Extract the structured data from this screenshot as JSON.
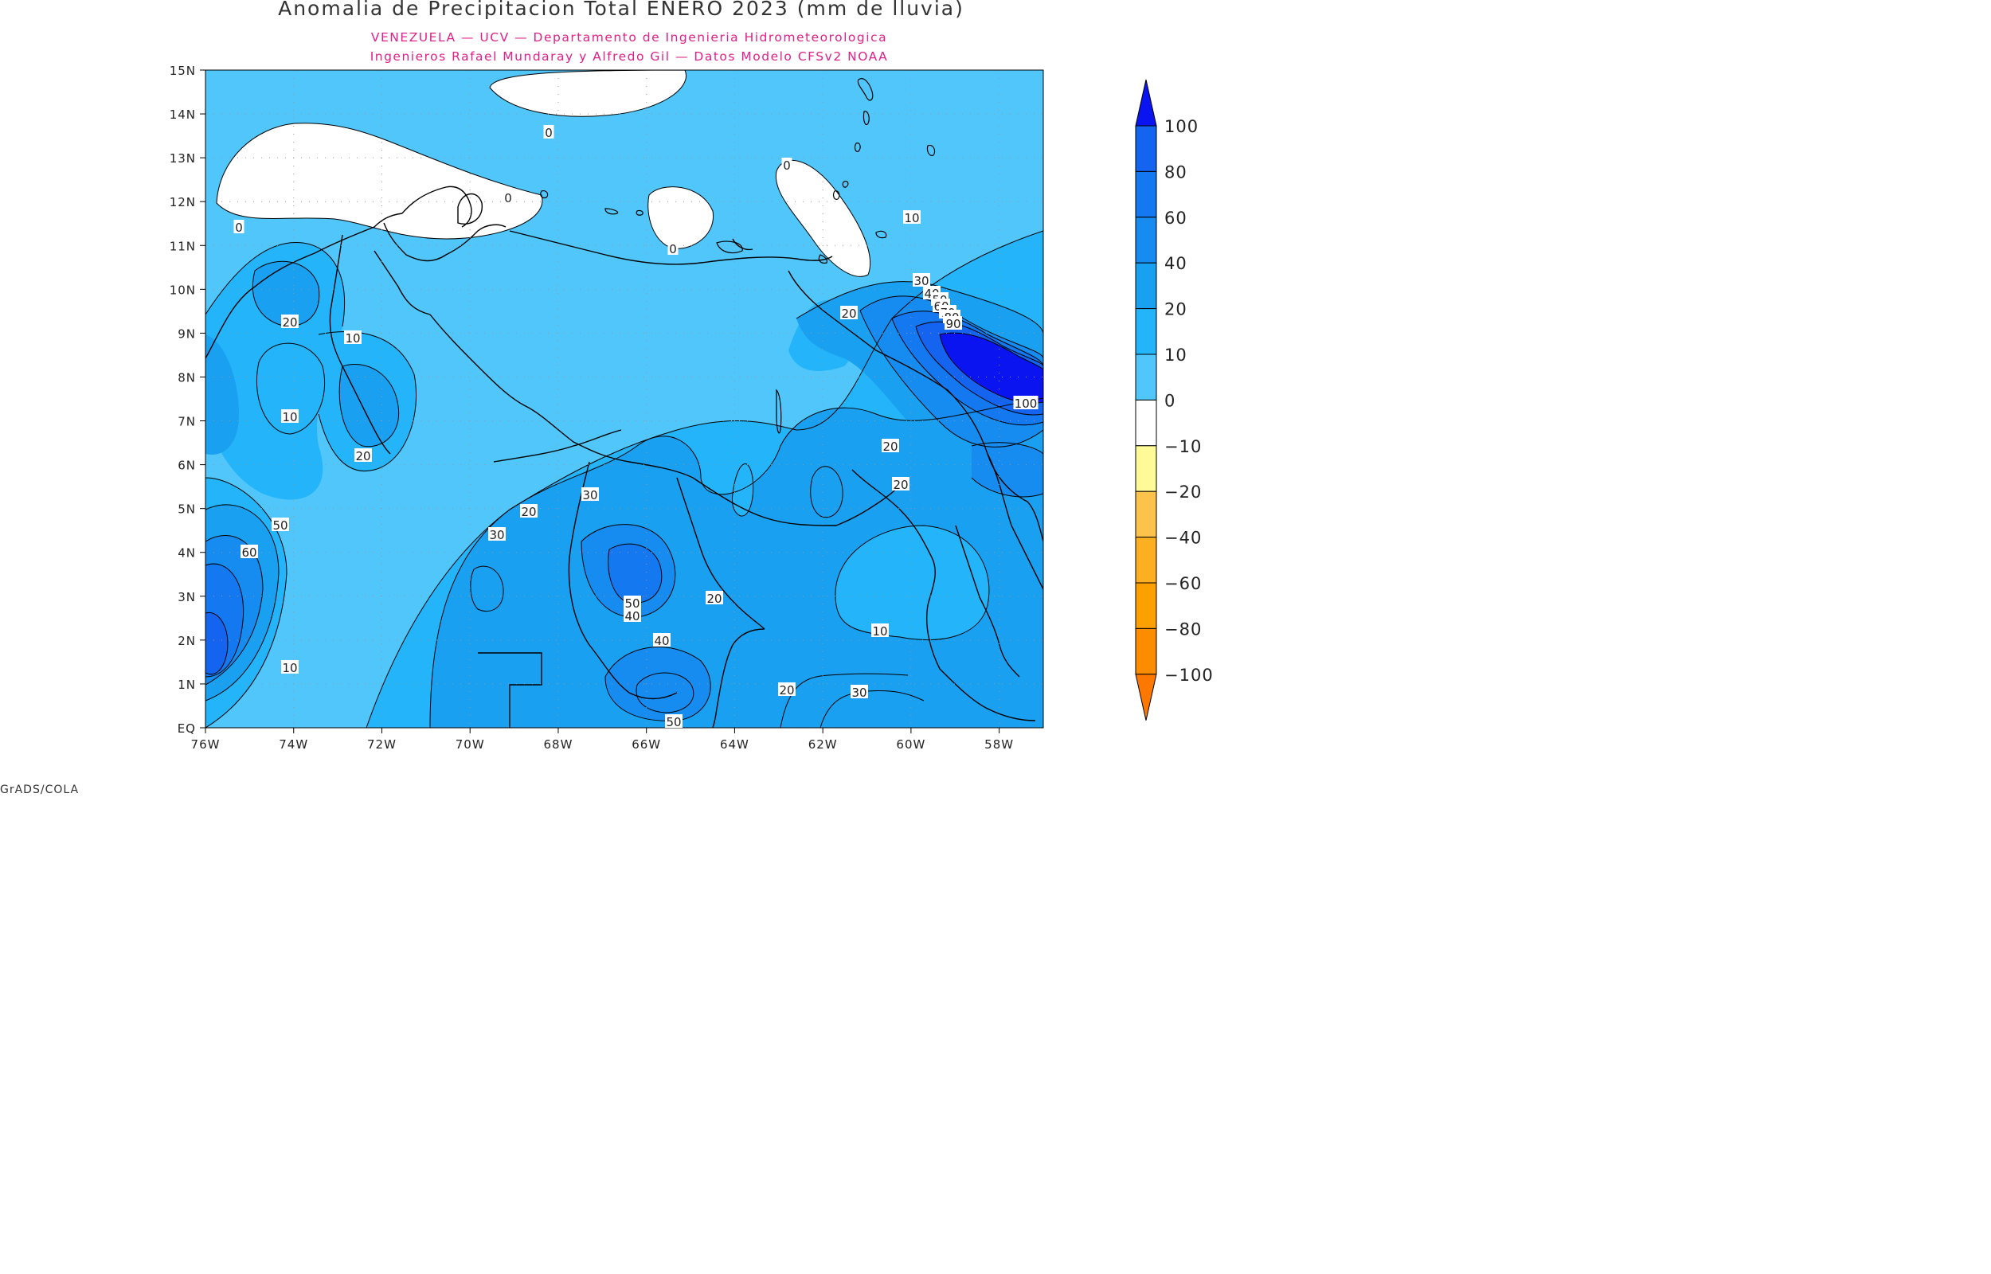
{
  "title": "Anomalia de Precipitacion Total ENERO 2023 (mm de lluvia)",
  "subtitle_1": "VENEZUELA — UCV — Departamento de Ingenieria Hidrometeorologica",
  "subtitle_2": "Ingenieros Rafael Mundaray y Alfredo Gil — Datos Modelo CFSv2 NOAA",
  "footer": "GrADS/COLA",
  "lat_labels": [
    "15N",
    "14N",
    "13N",
    "12N",
    "11N",
    "10N",
    "9N",
    "8N",
    "7N",
    "6N",
    "5N",
    "4N",
    "3N",
    "2N",
    "1N",
    "EQ"
  ],
  "lon_labels": [
    "76W",
    "74W",
    "72W",
    "70W",
    "68W",
    "66W",
    "64W",
    "62W",
    "60W",
    "58W"
  ],
  "colors": {
    "c_gt100": "#0a14f0",
    "c_80_100": "#1464f0",
    "c_60_80": "#1478f0",
    "c_40_60": "#168cf0",
    "c_20_40": "#1aa0f0",
    "c_10_20": "#23b4fa",
    "c_0_10": "#50c6fa",
    "c_m10_0": "#ffffff",
    "c_m20_m10": "#fffa98",
    "c_m40_m20": "#fcc34c",
    "c_m60_m40": "#fcaf20",
    "c_m80_m60": "#fca000",
    "c_m100_m80": "#fc8c00",
    "c_lt_m100": "#fc7800"
  },
  "colorbar_labels": [
    "100",
    "80",
    "60",
    "40",
    "20",
    "10",
    "0",
    "−10",
    "−20",
    "−40",
    "−60",
    "−80",
    "−100"
  ],
  "contour_labels": [
    {
      "text": "0"
    },
    {
      "text": "0"
    },
    {
      "text": "0"
    },
    {
      "text": "0"
    },
    {
      "text": "0"
    },
    {
      "text": "10"
    },
    {
      "text": "30"
    },
    {
      "text": "40"
    },
    {
      "text": "50"
    },
    {
      "text": "60"
    },
    {
      "text": "70"
    },
    {
      "text": "80"
    },
    {
      "text": "90"
    },
    {
      "text": "100"
    },
    {
      "text": "20"
    },
    {
      "text": "20"
    },
    {
      "text": "10"
    },
    {
      "text": "10"
    },
    {
      "text": "20"
    },
    {
      "text": "20"
    },
    {
      "text": "20"
    },
    {
      "text": "50"
    },
    {
      "text": "60"
    },
    {
      "text": "20"
    },
    {
      "text": "30"
    },
    {
      "text": "30"
    },
    {
      "text": "50"
    },
    {
      "text": "40"
    },
    {
      "text": "20"
    },
    {
      "text": "40"
    },
    {
      "text": "50"
    },
    {
      "text": "10"
    },
    {
      "text": "10"
    },
    {
      "text": "20"
    },
    {
      "text": "30"
    }
  ]
}
